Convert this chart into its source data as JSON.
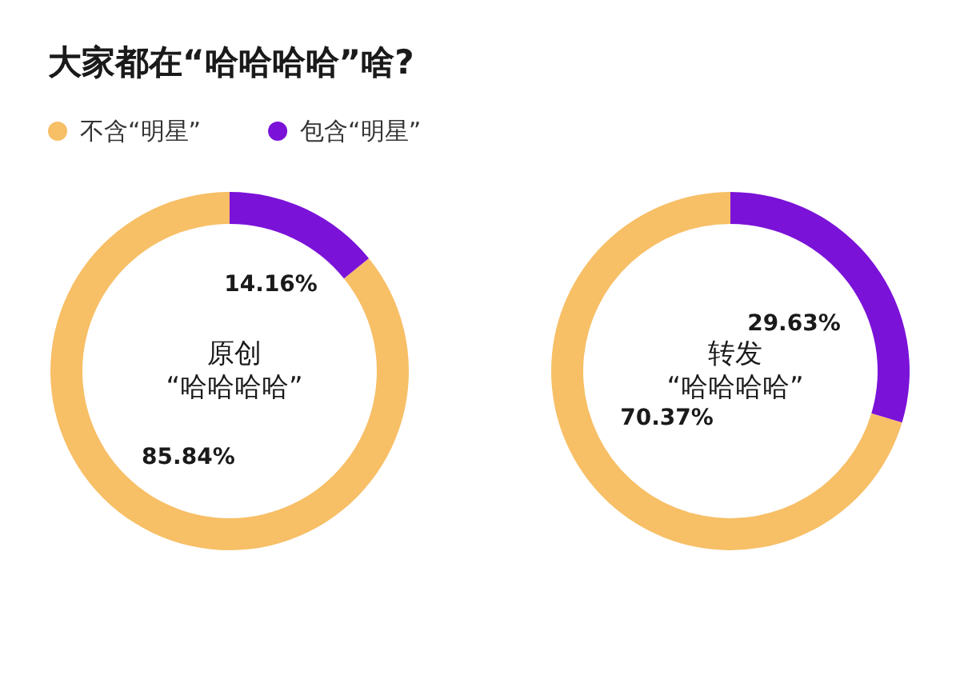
{
  "chart_data": [
    {
      "type": "donut",
      "title": "大家都在“哈哈哈哈”啥?",
      "categories": [
        "不含“明星”",
        "包含“明星”"
      ],
      "values": [
        85.84,
        14.16
      ],
      "colors": [
        "#f7bf66",
        "#7b12d8"
      ],
      "value_labels": [
        "85.84%",
        "14.16%"
      ],
      "annotations": [
        "原创",
        "“哈哈哈哈”"
      ],
      "legend": "top left"
    },
    {
      "type": "donut",
      "categories": [
        null,
        null
      ],
      "values": [
        70.37,
        29.63
      ],
      "colors": [
        "#f7bf66",
        "#7b12d8"
      ],
      "value_labels": [
        "70.37%",
        "29.63%"
      ],
      "annotations": [
        "转发",
        "“哈哈哈哈”"
      ]
    }
  ]
}
